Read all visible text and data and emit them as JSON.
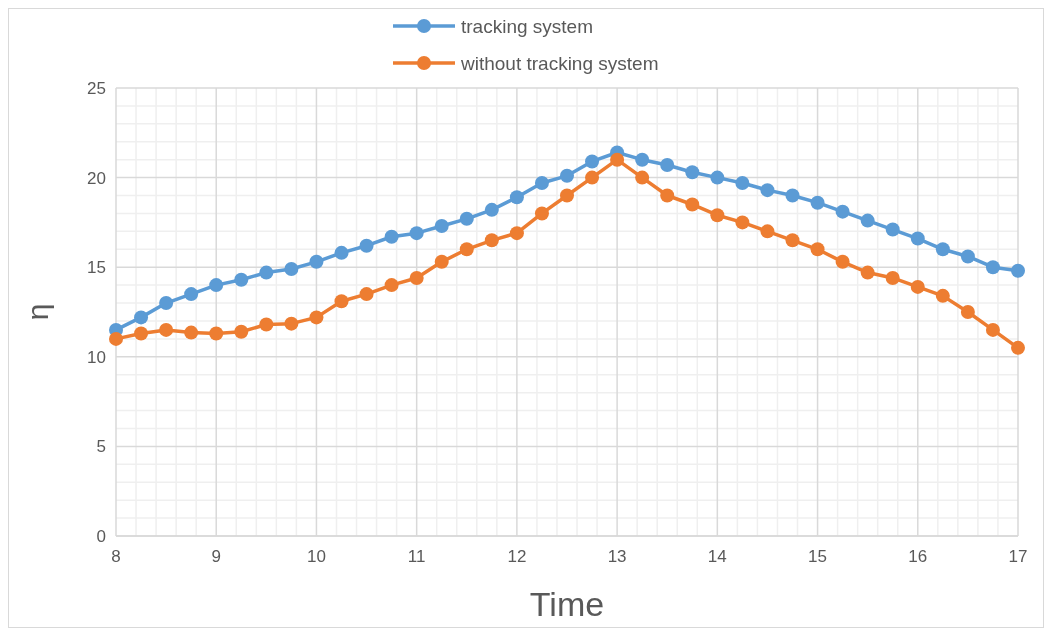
{
  "chart_data": {
    "type": "line",
    "xlabel": "Time",
    "ylabel": "η",
    "x": [
      8,
      8.25,
      8.5,
      8.75,
      9,
      9.25,
      9.5,
      9.75,
      10,
      10.25,
      10.5,
      10.75,
      11,
      11.25,
      11.5,
      11.75,
      12,
      12.25,
      12.5,
      12.75,
      13,
      13.25,
      13.5,
      13.75,
      14,
      14.25,
      14.5,
      14.75,
      15,
      15.25,
      15.5,
      15.75,
      16,
      16.25,
      16.5,
      16.75,
      17
    ],
    "series": [
      {
        "name": "tracking system",
        "color": "#5b9bd5",
        "values": [
          11.5,
          12.2,
          13.0,
          13.5,
          14.0,
          14.3,
          14.7,
          14.9,
          15.3,
          15.8,
          16.2,
          16.7,
          16.9,
          17.3,
          17.7,
          18.2,
          18.9,
          19.7,
          20.1,
          20.9,
          21.4,
          21.0,
          20.7,
          20.3,
          20.0,
          19.7,
          19.3,
          19.0,
          18.6,
          18.1,
          17.6,
          17.1,
          16.6,
          16.0,
          15.6,
          15.0,
          14.8
        ]
      },
      {
        "name": "without tracking system",
        "color": "#ed7d31",
        "values": [
          11.0,
          11.3,
          11.5,
          11.35,
          11.3,
          11.4,
          11.8,
          11.85,
          12.2,
          13.1,
          13.5,
          14.0,
          14.4,
          15.3,
          16.0,
          16.5,
          16.9,
          18.0,
          19.0,
          20.0,
          21.0,
          20.0,
          19.0,
          18.5,
          17.9,
          17.5,
          17.0,
          16.5,
          16.0,
          15.3,
          14.7,
          14.4,
          13.9,
          13.4,
          12.5,
          11.5,
          10.5
        ]
      }
    ],
    "xlim": [
      8,
      17
    ],
    "xticks": [
      8,
      9,
      10,
      11,
      12,
      13,
      14,
      15,
      16,
      17
    ],
    "ylim": [
      0,
      25
    ],
    "yticks": [
      0,
      5,
      10,
      15,
      20,
      25
    ],
    "grid": true,
    "legend": "top",
    "marker": "circle",
    "line_style": "solid"
  }
}
